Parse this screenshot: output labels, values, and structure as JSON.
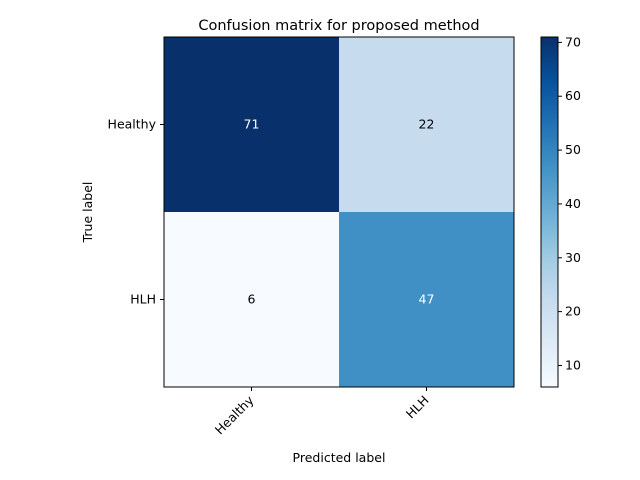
{
  "chart_data": {
    "type": "heatmap",
    "title": "Confusion matrix for proposed method",
    "xlabel": "Predicted label",
    "ylabel": "True label",
    "x_categories": [
      "Healthy",
      "HLH"
    ],
    "y_categories": [
      "Healthy",
      "HLH"
    ],
    "values": [
      [
        71,
        22
      ],
      [
        6,
        47
      ]
    ],
    "colormap": "Blues",
    "colorbar": {
      "range": [
        6,
        71
      ],
      "ticks": [
        10,
        20,
        30,
        40,
        50,
        60,
        70
      ]
    },
    "x_tick_rotation": "45",
    "grid": false
  }
}
